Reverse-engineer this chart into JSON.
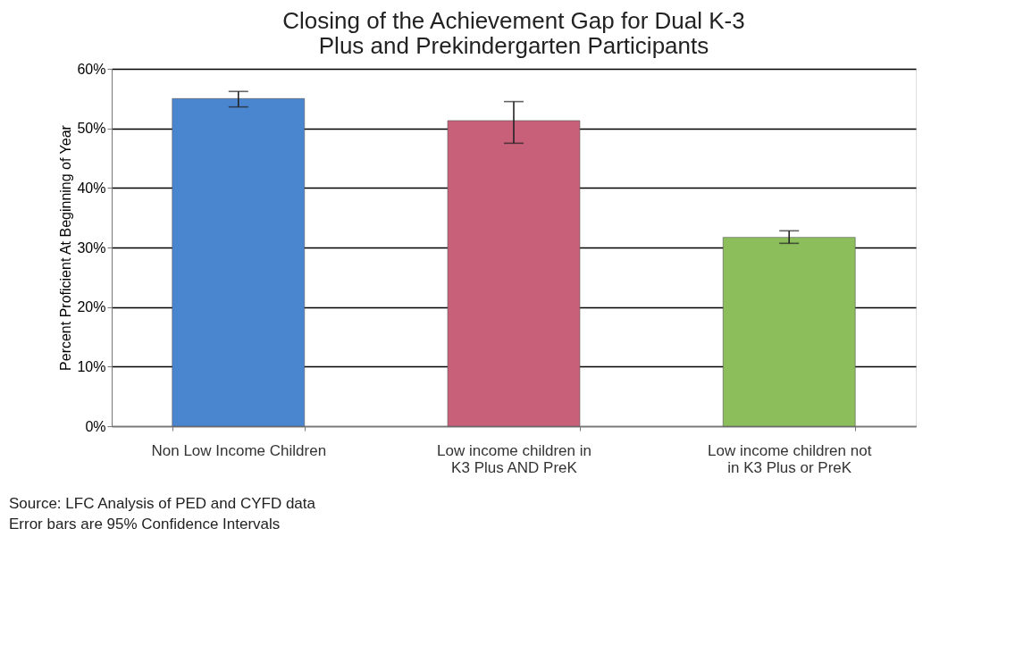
{
  "chart_data": {
    "type": "bar",
    "title": "Closing of the Achievement Gap for Dual K-3 Plus and Prekindergarten Participants",
    "ylabel": "Percent Proficient At Beginning of Year",
    "categories": [
      "Non Low Income Children",
      "Low income children in K3 Plus AND PreK",
      "Low income children not in K3 Plus or PreK"
    ],
    "values": [
      55,
      51.3,
      31.7
    ],
    "colors": [
      "#4a86d0",
      "#c8607a",
      "#8cbf5c"
    ],
    "errors": [
      [
        53.6,
        56.2
      ],
      [
        47.5,
        54.5
      ],
      [
        30.7,
        32.8
      ]
    ],
    "ylim": [
      0,
      60
    ],
    "yticks": [
      {
        "value": 0,
        "label": "0%"
      },
      {
        "value": 10,
        "label": "10%"
      },
      {
        "value": 20,
        "label": "20%"
      },
      {
        "value": 30,
        "label": "30%"
      },
      {
        "value": 40,
        "label": "40%"
      },
      {
        "value": 50,
        "label": "50%"
      },
      {
        "value": 60,
        "label": "60%"
      }
    ],
    "grid": "y",
    "annotations": [
      "Source: LFC Analysis of PED and CYFD data",
      "Error bars are 95% Confidence Intervals"
    ]
  }
}
